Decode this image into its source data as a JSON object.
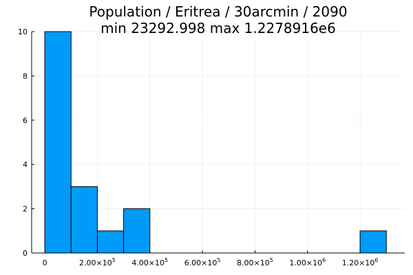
{
  "chart_data": {
    "type": "bar",
    "title_line1": "Population / Eritrea / 30arcmin / 2090",
    "title_line2": "min 23292.998  max 1.2278916e6",
    "xlabel": "",
    "ylabel": "",
    "xlim": [
      -50000,
      1370000
    ],
    "ylim": [
      0,
      10
    ],
    "grid": true,
    "legend": "none",
    "bar_color": "#009AF9",
    "bin_width": 100000,
    "bins": [
      {
        "x0": 0,
        "x1": 100000,
        "count": 10
      },
      {
        "x0": 100000,
        "x1": 200000,
        "count": 3
      },
      {
        "x0": 200000,
        "x1": 300000,
        "count": 1
      },
      {
        "x0": 300000,
        "x1": 400000,
        "count": 2
      },
      {
        "x0": 1200000,
        "x1": 1300000,
        "count": 1
      }
    ],
    "x_ticks": [
      {
        "value": 0,
        "mantissa": "0",
        "exp": ""
      },
      {
        "value": 200000,
        "mantissa": "2.00×10",
        "exp": "5"
      },
      {
        "value": 400000,
        "mantissa": "4.00×10",
        "exp": "5"
      },
      {
        "value": 600000,
        "mantissa": "6.00×10",
        "exp": "5"
      },
      {
        "value": 800000,
        "mantissa": "8.00×10",
        "exp": "5"
      },
      {
        "value": 1000000,
        "mantissa": "1.00×10",
        "exp": "6"
      },
      {
        "value": 1200000,
        "mantissa": "1.20×10",
        "exp": "6"
      }
    ],
    "y_ticks": [
      {
        "value": 0,
        "label": "0"
      },
      {
        "value": 2,
        "label": "2"
      },
      {
        "value": 4,
        "label": "4"
      },
      {
        "value": 6,
        "label": "6"
      },
      {
        "value": 8,
        "label": "8"
      },
      {
        "value": 10,
        "label": "10"
      }
    ]
  }
}
